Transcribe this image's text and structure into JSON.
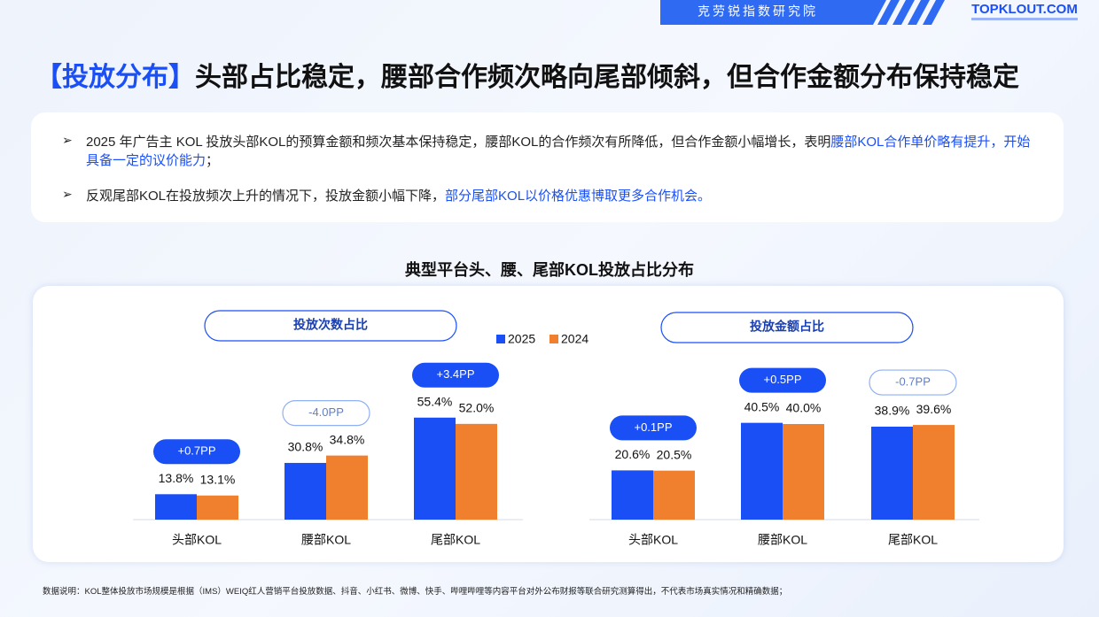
{
  "header": {
    "brand": "克劳锐指数研究院",
    "logo": "TOPKLOUT.COM"
  },
  "title_tag": "【投放分布】",
  "title": "头部占比稳定，腰部合作频次略向尾部倾斜，但合作金额分布保持稳定",
  "bullets": [
    {
      "text": "2025 年广告主 KOL 投放头部KOL的预算金额和频次基本保持稳定，腰部KOL的合作频次有所降低，但合作金额小幅增长，表明",
      "highlight": "腰部KOL合作单价略有提升，开始具备一定的议价能力",
      "tail": "；"
    },
    {
      "text": "反观尾部KOL在投放频次上升的情况下，投放金额小幅下降，",
      "highlight": "部分尾部KOL以价格优惠博取更多合作机会。",
      "tail": ""
    }
  ],
  "section_title": "典型平台头、腰、尾部KOL投放占比分布",
  "chart_data": [
    {
      "type": "bar",
      "title": "投放次数占比",
      "categories": [
        "头部KOL",
        "腰部KOL",
        "尾部KOL"
      ],
      "series": [
        {
          "name": "2025",
          "color": "#1a4ff5",
          "values": [
            13.8,
            30.8,
            55.4
          ],
          "value_labels": [
            "13.8%",
            "30.8%",
            "55.4%"
          ]
        },
        {
          "name": "2024",
          "color": "#f07f2e",
          "values": [
            13.1,
            34.8,
            52.0
          ],
          "value_labels": [
            "13.1%",
            "34.8%",
            "52.0%"
          ]
        }
      ],
      "annotations": [
        "+0.7PP",
        "-4.0PP",
        "+3.4PP"
      ]
    },
    {
      "type": "bar",
      "title": "投放金额占比",
      "categories": [
        "头部KOL",
        "腰部KOL",
        "尾部KOL"
      ],
      "series": [
        {
          "color": "#1a4ff5",
          "values": [
            20.6,
            40.5,
            38.9
          ],
          "value_labels": [
            "20.6%",
            "40.5%",
            "38.9%"
          ]
        },
        {
          "color": "#f07f2e",
          "values": [
            20.5,
            40.0,
            39.6
          ],
          "value_labels": [
            "20.5%",
            "40.0%",
            "39.6%"
          ]
        }
      ],
      "annotations": [
        "+0.1PP",
        "+0.5PP",
        "-0.7PP"
      ]
    }
  ],
  "footnote": "数据说明：KOL整体投放市场规模是根据（IMS）WEIQ红人营销平台投放数据、抖音、小红书、微博、快手、哔哩哔哩等内容平台对外公布财报等联合研究测算得出，不代表市场真实情况和精确数据；"
}
